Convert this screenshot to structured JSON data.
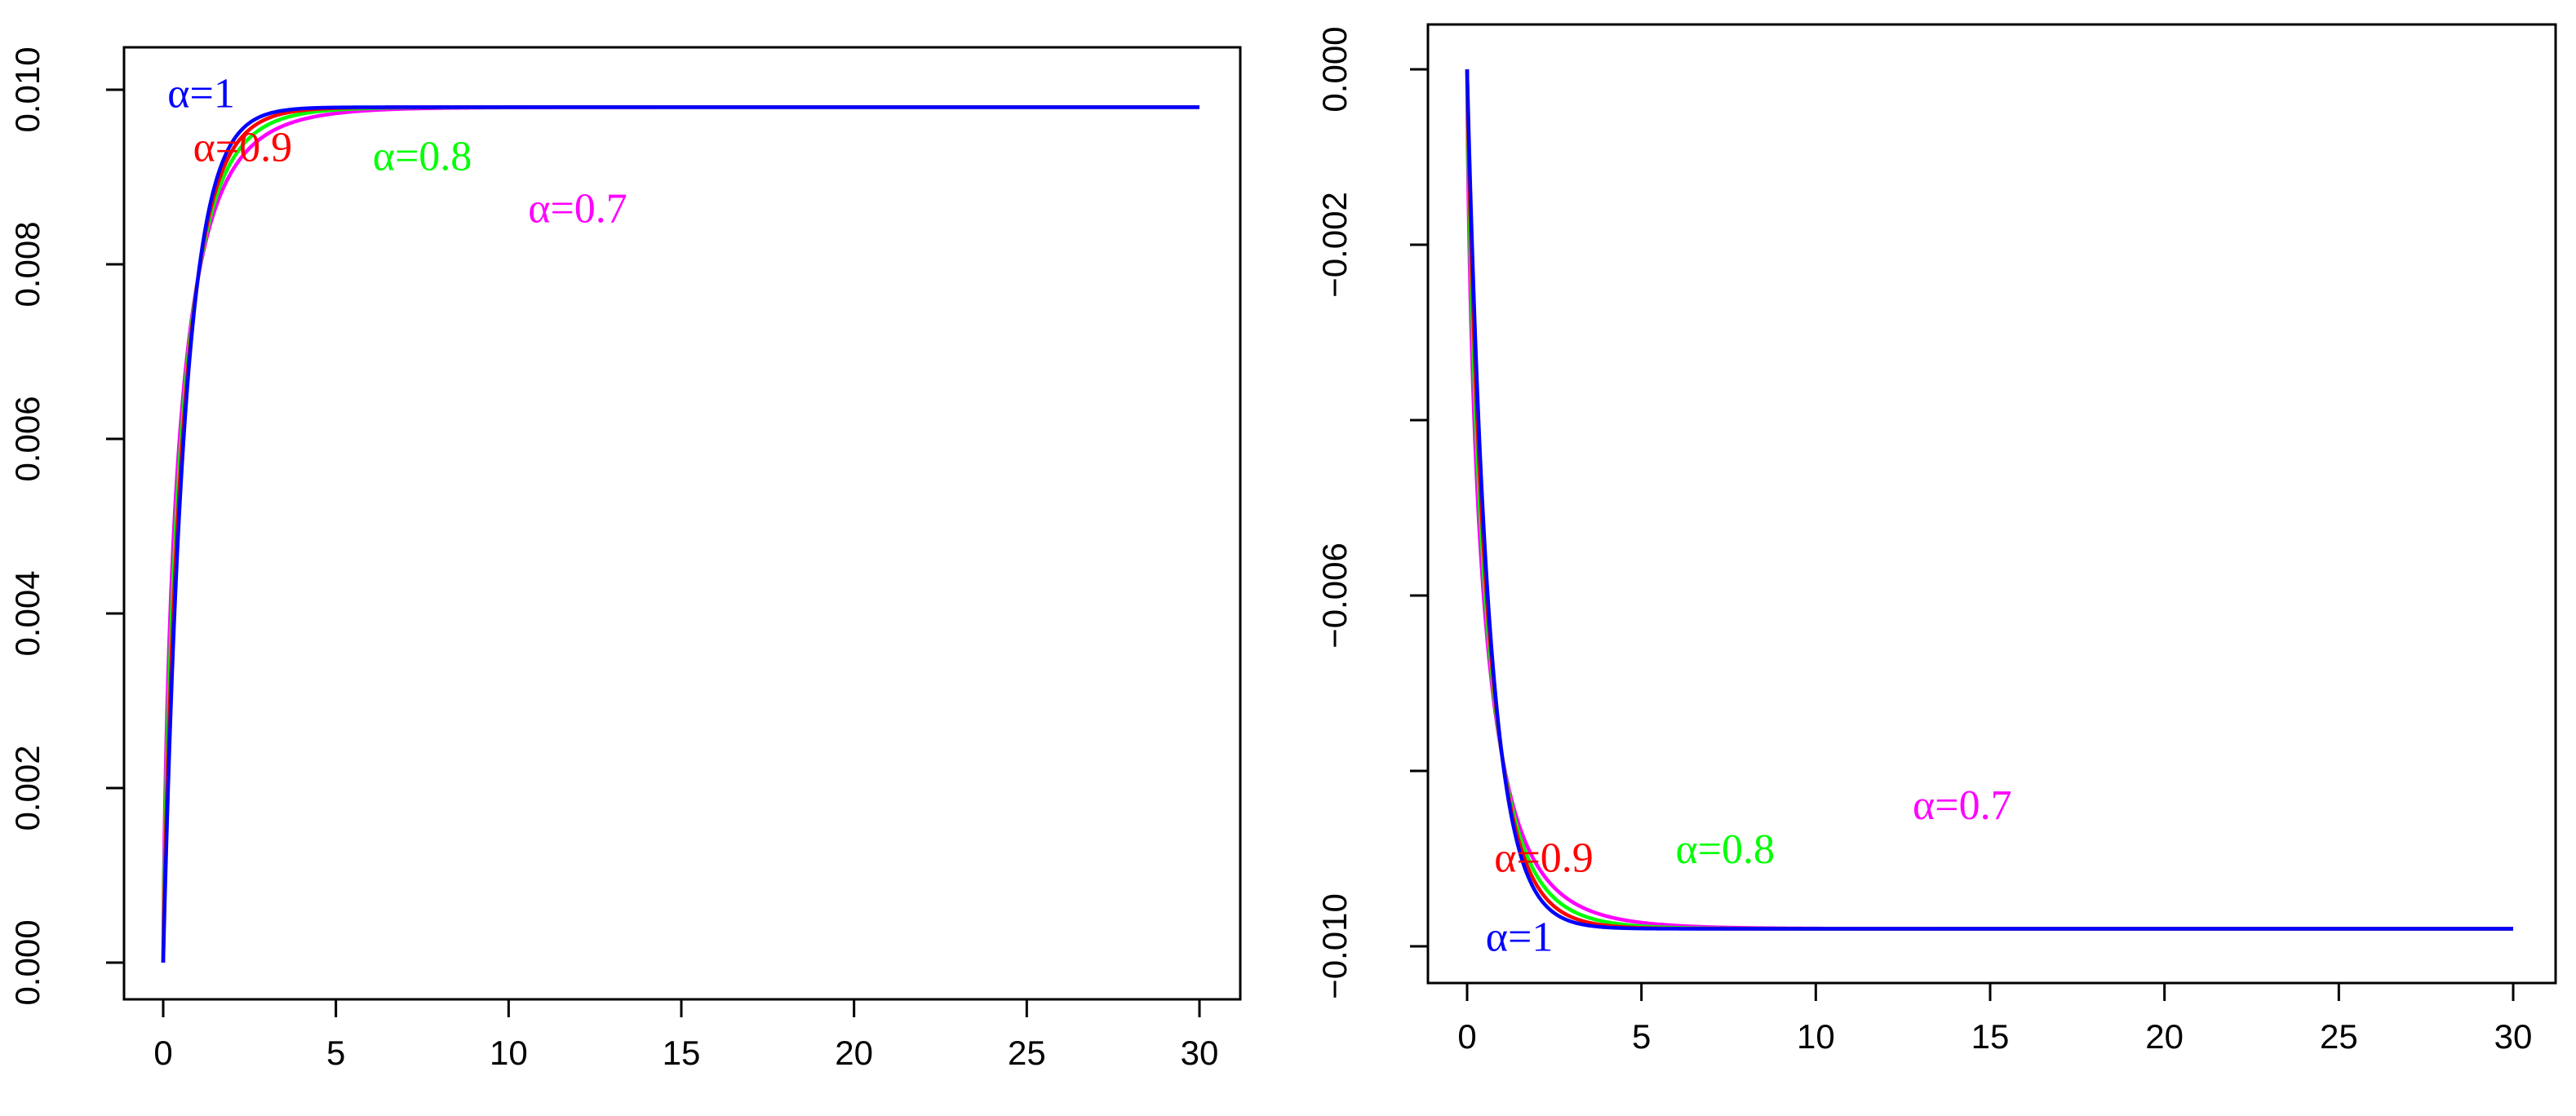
{
  "chart_data": [
    {
      "type": "line",
      "title": "",
      "xlabel": "",
      "ylabel": "",
      "xlim": [
        0,
        30
      ],
      "ylim": [
        0,
        0.01
      ],
      "x_ticks": [
        0,
        5,
        10,
        15,
        20,
        25,
        30
      ],
      "x_tick_labels": [
        "0",
        "5",
        "10",
        "15",
        "20",
        "25",
        "30"
      ],
      "y_ticks": [
        0,
        0.002,
        0.004,
        0.006,
        0.008,
        0.01
      ],
      "y_tick_labels": [
        "0.000",
        "0.002",
        "0.004",
        "0.006",
        "0.008",
        "0.010"
      ],
      "grid": false,
      "series": [
        {
          "name": "α=1",
          "label": "α=1",
          "color": "#0000FF",
          "alpha": 1.0,
          "asymptote": 0.0098,
          "shape": 1.6,
          "label_at": [
            1.1,
            0.0098
          ]
        },
        {
          "name": "α=0.9",
          "label": "α=0.9",
          "color": "#FF0000",
          "alpha": 0.9,
          "asymptote": 0.0098,
          "shape": 1.6,
          "label_at": [
            2.3,
            0.00918
          ]
        },
        {
          "name": "α=0.8",
          "label": "α=0.8",
          "color": "#00FF00",
          "alpha": 0.8,
          "asymptote": 0.0098,
          "shape": 1.6,
          "label_at": [
            7.5,
            0.00908
          ]
        },
        {
          "name": "α=0.7",
          "label": "α=0.7",
          "color": "#FF00FF",
          "alpha": 0.7,
          "asymptote": 0.0098,
          "shape": 1.6,
          "label_at": [
            12.0,
            0.00848
          ]
        }
      ]
    },
    {
      "type": "line",
      "title": "",
      "xlabel": "",
      "ylabel": "",
      "xlim": [
        0,
        30
      ],
      "ylim": [
        -0.01,
        0
      ],
      "x_ticks": [
        0,
        5,
        10,
        15,
        20,
        25,
        30
      ],
      "x_tick_labels": [
        "0",
        "5",
        "10",
        "15",
        "20",
        "25",
        "30"
      ],
      "y_ticks": [
        0,
        -0.002,
        -0.004,
        -0.006,
        -0.008,
        -0.01
      ],
      "y_tick_labels": [
        "0.000",
        "−0.002",
        "",
        "−0.006",
        "",
        "−0.010"
      ],
      "grid": false,
      "series": [
        {
          "name": "α=1",
          "label": "α=1",
          "color": "#0000FF",
          "alpha": 1.0,
          "asymptote": -0.0098,
          "shape": 1.6,
          "label_at": [
            1.5,
            -0.01005
          ]
        },
        {
          "name": "α=0.9",
          "label": "α=0.9",
          "color": "#FF0000",
          "alpha": 0.9,
          "asymptote": -0.0098,
          "shape": 1.6,
          "label_at": [
            2.2,
            -0.00915
          ]
        },
        {
          "name": "α=0.8",
          "label": "α=0.8",
          "color": "#00FF00",
          "alpha": 0.8,
          "asymptote": -0.0098,
          "shape": 1.6,
          "label_at": [
            7.4,
            -0.00905
          ]
        },
        {
          "name": "α=0.7",
          "label": "α=0.7",
          "color": "#FF00FF",
          "alpha": 0.7,
          "asymptote": -0.0098,
          "shape": 1.6,
          "label_at": [
            14.2,
            -0.00855
          ]
        }
      ]
    }
  ]
}
